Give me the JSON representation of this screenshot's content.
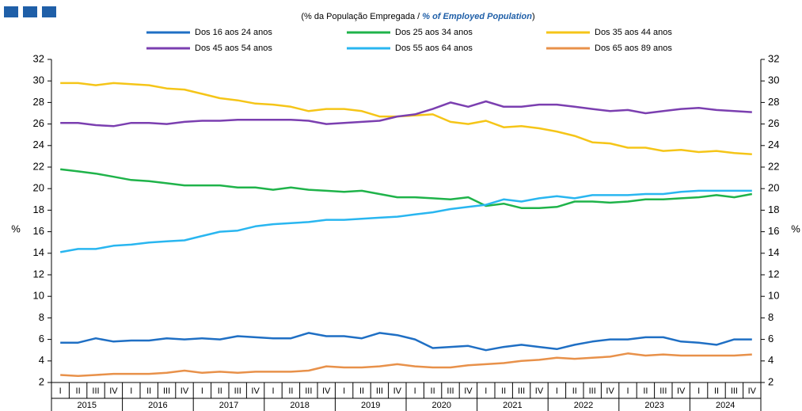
{
  "chart_data": {
    "type": "line",
    "subtitle": [
      "(% da População Empregada / ",
      "% of Employed Population",
      ")"
    ],
    "y_label": "%",
    "categories": [
      "I",
      "II",
      "III",
      "IV",
      "I",
      "II",
      "III",
      "IV",
      "I",
      "II",
      "III",
      "IV",
      "I",
      "II",
      "III",
      "IV",
      "I",
      "II",
      "III",
      "IV",
      "I",
      "II",
      "III",
      "IV",
      "I",
      "II",
      "III",
      "IV",
      "I",
      "II",
      "III",
      "IV",
      "I",
      "II",
      "III",
      "IV",
      "I",
      "II",
      "III",
      "IV"
    ],
    "years": [
      "2015",
      "2016",
      "2017",
      "2018",
      "2019",
      "2020",
      "2021",
      "2022",
      "2023",
      "2024"
    ],
    "ylim": [
      2,
      32
    ],
    "yticks": [
      2,
      4,
      6,
      8,
      10,
      12,
      14,
      16,
      18,
      20,
      22,
      24,
      26,
      28,
      30,
      32
    ],
    "grid": false,
    "series": [
      {
        "name": "Dos 16 aos 24 anos",
        "color": "#1f6fc4",
        "values": [
          5.7,
          5.7,
          6.1,
          5.8,
          5.9,
          5.9,
          6.1,
          6.0,
          6.1,
          6.0,
          6.3,
          6.2,
          6.1,
          6.1,
          6.6,
          6.3,
          6.3,
          6.1,
          6.6,
          6.4,
          6.0,
          5.2,
          5.3,
          5.4,
          5.0,
          5.3,
          5.5,
          5.3,
          5.1,
          5.5,
          5.8,
          6.0,
          6.0,
          6.2,
          6.2,
          5.8,
          5.7,
          5.5,
          6.0,
          6.0
        ]
      },
      {
        "name": "Dos 25 aos 34 anos",
        "color": "#1fb34a",
        "values": [
          21.8,
          21.6,
          21.4,
          21.1,
          20.8,
          20.7,
          20.5,
          20.3,
          20.3,
          20.3,
          20.1,
          20.1,
          19.9,
          20.1,
          19.9,
          19.8,
          19.7,
          19.8,
          19.5,
          19.2,
          19.2,
          19.1,
          19.0,
          19.2,
          18.4,
          18.6,
          18.2,
          18.2,
          18.3,
          18.8,
          18.8,
          18.7,
          18.8,
          19.0,
          19.0,
          19.1,
          19.2,
          19.4,
          19.2,
          19.5
        ]
      },
      {
        "name": "Dos 35 aos 44 anos",
        "color": "#f5c518",
        "values": [
          29.8,
          29.8,
          29.6,
          29.8,
          29.7,
          29.6,
          29.3,
          29.2,
          28.8,
          28.4,
          28.2,
          27.9,
          27.8,
          27.6,
          27.2,
          27.4,
          27.4,
          27.2,
          26.7,
          26.7,
          26.8,
          26.9,
          26.2,
          26.0,
          26.3,
          25.7,
          25.8,
          25.6,
          25.3,
          24.9,
          24.3,
          24.2,
          23.8,
          23.8,
          23.5,
          23.6,
          23.4,
          23.5,
          23.3,
          23.2
        ]
      },
      {
        "name": "Dos 45 aos 54 anos",
        "color": "#7b3fb0",
        "values": [
          26.1,
          26.1,
          25.9,
          25.8,
          26.1,
          26.1,
          26.0,
          26.2,
          26.3,
          26.3,
          26.4,
          26.4,
          26.4,
          26.4,
          26.3,
          26.0,
          26.1,
          26.2,
          26.3,
          26.7,
          26.9,
          27.4,
          28.0,
          27.6,
          28.1,
          27.6,
          27.6,
          27.8,
          27.8,
          27.6,
          27.4,
          27.2,
          27.3,
          27.0,
          27.2,
          27.4,
          27.5,
          27.3,
          27.2,
          27.1
        ]
      },
      {
        "name": "Dos 55 aos 64 anos",
        "color": "#29b6f0",
        "values": [
          14.1,
          14.4,
          14.4,
          14.7,
          14.8,
          15.0,
          15.1,
          15.2,
          15.6,
          16.0,
          16.1,
          16.5,
          16.7,
          16.8,
          16.9,
          17.1,
          17.1,
          17.2,
          17.3,
          17.4,
          17.6,
          17.8,
          18.1,
          18.3,
          18.5,
          19.0,
          18.8,
          19.1,
          19.3,
          19.1,
          19.4,
          19.4,
          19.4,
          19.5,
          19.5,
          19.7,
          19.8,
          19.8,
          19.8,
          19.8
        ]
      },
      {
        "name": "Dos 65 aos 89 anos",
        "color": "#e8914a",
        "values": [
          2.7,
          2.6,
          2.7,
          2.8,
          2.8,
          2.8,
          2.9,
          3.1,
          2.9,
          3.0,
          2.9,
          3.0,
          3.0,
          3.0,
          3.1,
          3.5,
          3.4,
          3.4,
          3.5,
          3.7,
          3.5,
          3.4,
          3.4,
          3.6,
          3.7,
          3.8,
          4.0,
          4.1,
          4.3,
          4.2,
          4.3,
          4.4,
          4.7,
          4.5,
          4.6,
          4.5,
          4.5,
          4.5,
          4.5,
          4.6
        ]
      }
    ]
  }
}
